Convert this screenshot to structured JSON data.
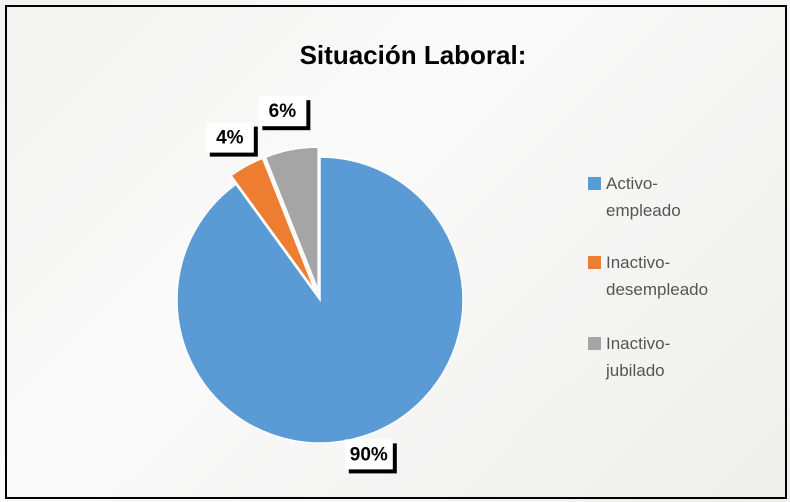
{
  "chart_data": {
    "type": "pie",
    "title": "Situación Laboral:",
    "categories": [
      "Activo-empleado",
      "Inactivo-desempleado",
      "Inactivo-jubilado"
    ],
    "values": [
      90,
      4,
      6
    ],
    "value_labels": [
      "90%",
      "4%",
      "6%"
    ],
    "colors": [
      "#5b9bd5",
      "#ed7d31",
      "#a5a5a5"
    ],
    "legend": "right"
  }
}
